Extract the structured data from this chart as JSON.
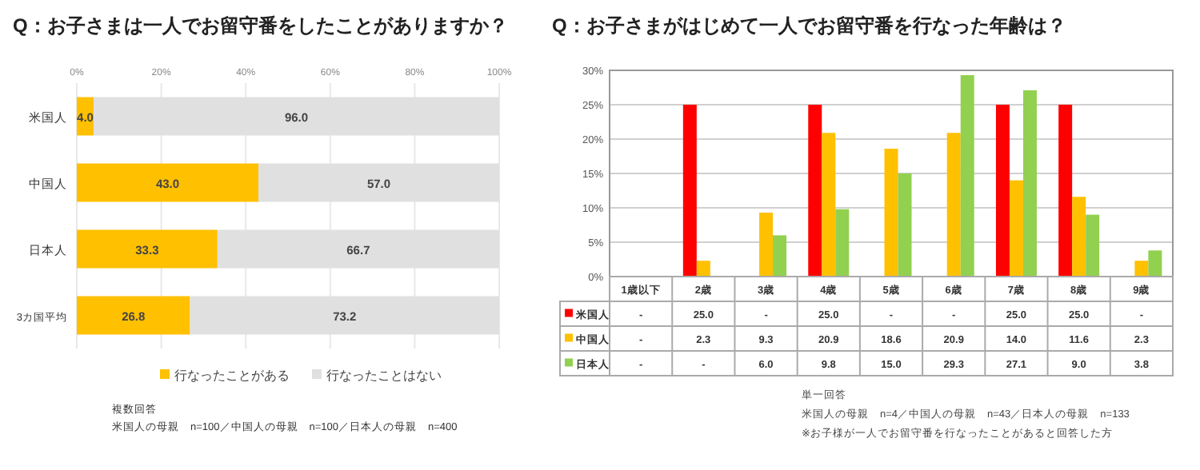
{
  "chart_data": [
    {
      "type": "bar",
      "orientation": "horizontal",
      "stacked": true,
      "title": "Q：お子さまは一人でお留守番をしたことがありますか？",
      "categories": [
        "米国人",
        "中国人",
        "日本人",
        "3カ国平均"
      ],
      "series": [
        {
          "name": "行なったことがある",
          "color": "#ffc000",
          "values": [
            4.0,
            43.0,
            33.3,
            26.8
          ],
          "value_labels": [
            "4.0",
            "43.0",
            "33.3",
            "26.8"
          ]
        },
        {
          "name": "行なったことはない",
          "color": "#e0e0e0",
          "values": [
            96.0,
            57.0,
            66.7,
            73.2
          ],
          "value_labels": [
            "96.0",
            "57.0",
            "66.7",
            "73.2"
          ]
        }
      ],
      "xlim": [
        0,
        100
      ],
      "xticks": [
        {
          "value": 0,
          "label": "0%"
        },
        {
          "value": 20,
          "label": "20%"
        },
        {
          "value": 40,
          "label": "40%"
        },
        {
          "value": 60,
          "label": "60%"
        },
        {
          "value": 80,
          "label": "80%"
        },
        {
          "value": 100,
          "label": "100%"
        }
      ],
      "grid": "x",
      "legend": "bottom",
      "annotations": [
        "複数回答",
        "米国人の母親　n=100／中国人の母親　n=100／日本人の母親　n=400"
      ]
    },
    {
      "type": "bar",
      "title": "Q：お子さまがはじめて一人でお留守番を行なった年齢は？",
      "categories": [
        "1歳以下",
        "2歳",
        "3歳",
        "4歳",
        "5歳",
        "6歳",
        "7歳",
        "8歳",
        "9歳"
      ],
      "series": [
        {
          "name": "米国人",
          "color": "#ff0000",
          "values": [
            null,
            25.0,
            null,
            25.0,
            null,
            null,
            25.0,
            25.0,
            null
          ],
          "value_labels": [
            "-",
            "25.0",
            "-",
            "25.0",
            "-",
            "-",
            "25.0",
            "25.0",
            "-"
          ]
        },
        {
          "name": "中国人",
          "color": "#ffc000",
          "values": [
            null,
            2.3,
            9.3,
            20.9,
            18.6,
            20.9,
            14.0,
            11.6,
            2.3
          ],
          "value_labels": [
            "-",
            "2.3",
            "9.3",
            "20.9",
            "18.6",
            "20.9",
            "14.0",
            "11.6",
            "2.3"
          ]
        },
        {
          "name": "日本人",
          "color": "#92d050",
          "values": [
            null,
            null,
            6.0,
            9.8,
            15.0,
            29.3,
            27.1,
            9.0,
            3.8
          ],
          "value_labels": [
            "-",
            "-",
            "6.0",
            "9.8",
            "15.0",
            "29.3",
            "27.1",
            "9.0",
            "3.8"
          ]
        }
      ],
      "ylim": [
        0,
        30
      ],
      "yticks": [
        {
          "value": 0,
          "label": "0%"
        },
        {
          "value": 5,
          "label": "5%"
        },
        {
          "value": 10,
          "label": "10%"
        },
        {
          "value": 15,
          "label": "15%"
        },
        {
          "value": 20,
          "label": "20%"
        },
        {
          "value": 25,
          "label": "25%"
        },
        {
          "value": 30,
          "label": "30%"
        }
      ],
      "grid": "y",
      "legend": "bottom left",
      "annotations": [
        "単一回答",
        "米国人の母親　n=4／中国人の母親　n=43／日本人の母親　n=133",
        "※お子様が一人でお留守番を行なったことがあると回答した方"
      ]
    }
  ]
}
